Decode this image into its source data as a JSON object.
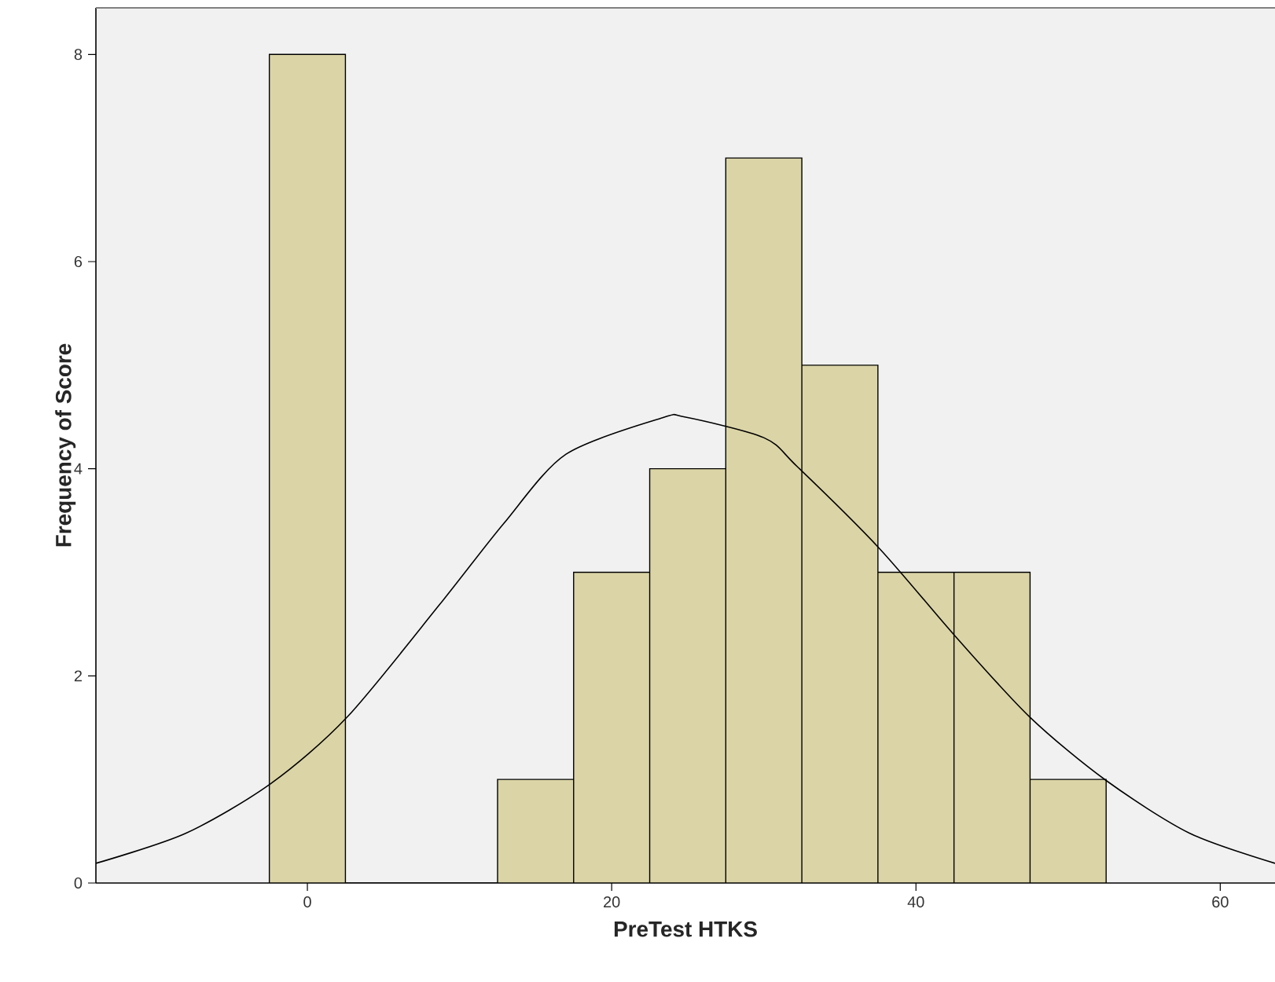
{
  "chart_data": {
    "type": "histogram",
    "xlabel": "PreTest HTKS",
    "ylabel": "Frequency of Score",
    "bins": [
      -2.5,
      2.5,
      7.5,
      12.5,
      17.5,
      22.5,
      27.5,
      32.5,
      37.5,
      42.5,
      47.5,
      52.5
    ],
    "values": [
      8,
      0,
      0,
      1,
      3,
      4,
      7,
      5,
      3,
      3,
      1
    ],
    "color": "#dbd4a6",
    "xlim": [
      -13.9,
      63.6
    ],
    "ylim": [
      0,
      8.45
    ],
    "xticks": [
      0,
      20,
      40,
      60
    ],
    "yticks": [
      0,
      2,
      4,
      6,
      8
    ],
    "series": [
      {
        "type": "line",
        "color": "#000000",
        "x": [
          -13.9,
          -8,
          -2.4,
          2.6,
          8.7,
          12.9,
          17,
          23.3,
          24.8,
          30,
          32.2,
          37.6,
          42.6,
          47.5,
          52.5,
          58,
          63.6
        ],
        "values": [
          0.19,
          0.48,
          0.96,
          1.6,
          2.69,
          3.47,
          4.14,
          4.49,
          4.5,
          4.3,
          4.02,
          3.23,
          2.38,
          1.6,
          0.99,
          0.48,
          0.19
        ]
      }
    ]
  }
}
